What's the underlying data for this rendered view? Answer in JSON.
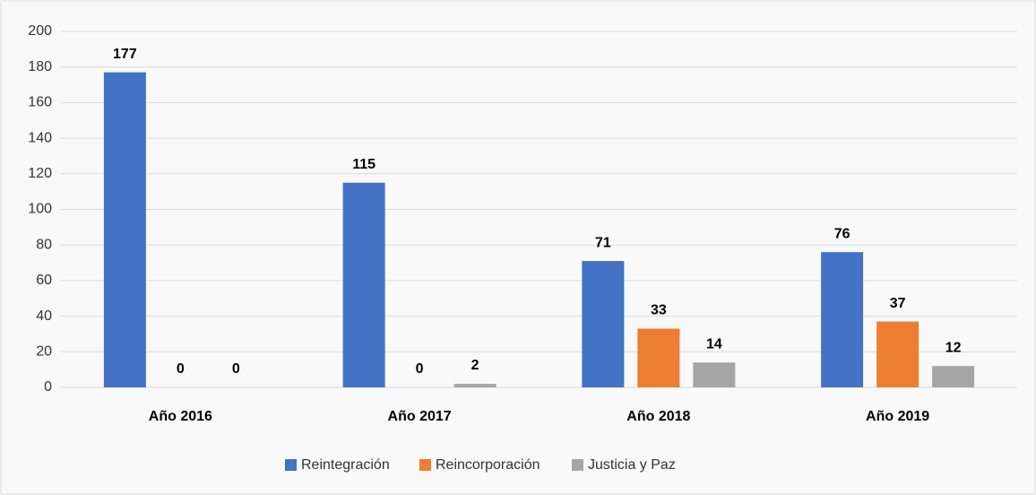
{
  "chart_data": {
    "type": "bar",
    "categories": [
      "Año 2016",
      "Año 2017",
      "Año 2018",
      "Año 2019"
    ],
    "series": [
      {
        "name": "Reintegración",
        "color": "#4472c4",
        "values": [
          177,
          115,
          71,
          76
        ]
      },
      {
        "name": "Reincorporación",
        "color": "#ed7d31",
        "values": [
          0,
          0,
          33,
          37
        ]
      },
      {
        "name": "Justicia y Paz",
        "color": "#a5a5a5",
        "values": [
          0,
          2,
          14,
          12
        ]
      }
    ],
    "ylim": [
      0,
      200
    ],
    "yticks": [
      0,
      20,
      40,
      60,
      80,
      100,
      120,
      140,
      160,
      180,
      200
    ],
    "grid": true,
    "legend": "bottom"
  }
}
